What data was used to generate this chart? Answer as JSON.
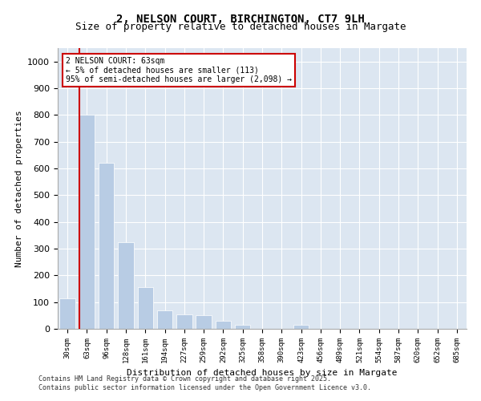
{
  "title_line1": "2, NELSON COURT, BIRCHINGTON, CT7 9LH",
  "title_line2": "Size of property relative to detached houses in Margate",
  "xlabel": "Distribution of detached houses by size in Margate",
  "ylabel": "Number of detached properties",
  "footer_line1": "Contains HM Land Registry data © Crown copyright and database right 2025.",
  "footer_line2": "Contains public sector information licensed under the Open Government Licence v3.0.",
  "annotation_line1": "2 NELSON COURT: 63sqm",
  "annotation_line2": "← 5% of detached houses are smaller (113)",
  "annotation_line3": "95% of semi-detached houses are larger (2,098) →",
  "bar_colors": [
    "#b8cce4",
    "#b8cce4",
    "#b8cce4",
    "#b8cce4",
    "#b8cce4",
    "#b8cce4",
    "#b8cce4",
    "#b8cce4",
    "#b8cce4",
    "#b8cce4",
    "#b8cce4",
    "#b8cce4",
    "#b8cce4",
    "#b8cce4",
    "#b8cce4",
    "#b8cce4",
    "#b8cce4",
    "#b8cce4",
    "#b8cce4",
    "#b8cce4",
    "#b8cce4"
  ],
  "categories": [
    "30sqm",
    "63sqm",
    "96sqm",
    "128sqm",
    "161sqm",
    "194sqm",
    "227sqm",
    "259sqm",
    "292sqm",
    "325sqm",
    "358sqm",
    "390sqm",
    "423sqm",
    "456sqm",
    "489sqm",
    "521sqm",
    "554sqm",
    "587sqm",
    "620sqm",
    "652sqm",
    "685sqm"
  ],
  "values": [
    113,
    800,
    620,
    325,
    155,
    70,
    55,
    50,
    30,
    15,
    0,
    0,
    15,
    0,
    0,
    0,
    0,
    0,
    0,
    0,
    0
  ],
  "vline_x": 1,
  "vline_color": "#cc0000",
  "box_color": "#cc0000",
  "bg_color": "#dce6f1",
  "plot_bg": "#dce6f1",
  "ylim": [
    0,
    1050
  ],
  "yticks": [
    0,
    100,
    200,
    300,
    400,
    500,
    600,
    700,
    800,
    900,
    1000
  ]
}
